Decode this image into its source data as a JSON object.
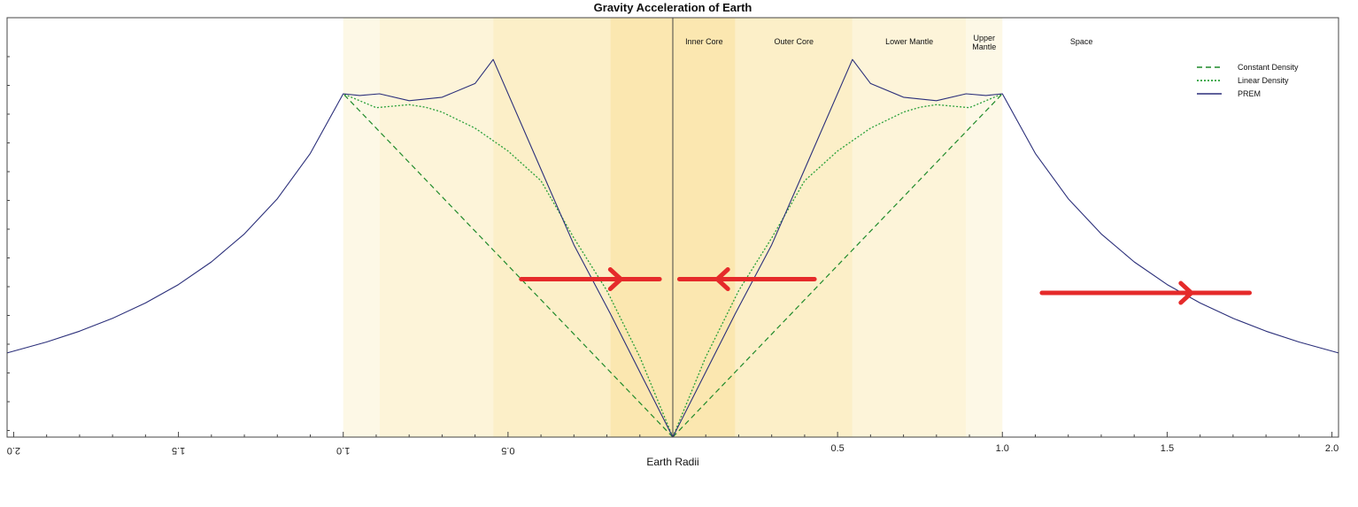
{
  "chart_data": {
    "type": "line",
    "title": "Gravity Acceleration of Earth",
    "xlabel": "Earth Radii",
    "ylabel": "",
    "xlim": [
      0,
      2.02
    ],
    "ylim": [
      0,
      1.2
    ],
    "x_ticks": [
      "0.5",
      "1.0",
      "1.5",
      "2.0"
    ],
    "x_ticks_mirrored": [
      "0.5",
      "1.0",
      "1.5",
      "2.0"
    ],
    "grid": false,
    "legend_position": "top-right",
    "legend": [
      {
        "label": "Constant Density",
        "style": "dashed",
        "color": "#1f8a2a"
      },
      {
        "label": "Linear Density",
        "style": "dotted",
        "color": "#2aa03a"
      },
      {
        "label": "PREM",
        "style": "solid",
        "color": "#2b2f7a"
      }
    ],
    "regions": [
      {
        "label": "Inner Core",
        "from": 0.0,
        "to": 0.19,
        "color": "#fbe7b0"
      },
      {
        "label": "Outer Core",
        "from": 0.19,
        "to": 0.545,
        "color": "#fcefc8"
      },
      {
        "label": "Lower Mantle",
        "from": 0.545,
        "to": 0.89,
        "color": "#fdf4d9"
      },
      {
        "label": "Upper Mantle",
        "from": 0.89,
        "to": 1.0,
        "color": "#fdf8e6"
      },
      {
        "label": "Space",
        "from": 1.0,
        "to": 2.02,
        "color": "#ffffff"
      }
    ],
    "series": [
      {
        "name": "Constant Density",
        "x": [
          0,
          1.0
        ],
        "y": [
          0,
          1.0
        ]
      },
      {
        "name": "Linear Density",
        "x": [
          0,
          0.1,
          0.2,
          0.3,
          0.4,
          0.5,
          0.6,
          0.7,
          0.75,
          0.8,
          0.9,
          1.0
        ],
        "y": [
          0,
          0.2333,
          0.4267,
          0.58,
          0.7467,
          0.8333,
          0.9,
          0.9467,
          0.9609,
          0.9682,
          0.9595,
          1.0
        ]
      },
      {
        "name": "PREM",
        "x": [
          0,
          0.19,
          0.3,
          0.4,
          0.545,
          0.6,
          0.7,
          0.8,
          0.89,
          0.95,
          1.0,
          1.1,
          1.2,
          1.3,
          1.4,
          1.5,
          1.6,
          1.7,
          1.8,
          1.9,
          2.02
        ],
        "y": [
          0,
          0.36,
          0.56,
          0.78,
          1.1,
          1.03,
          0.99,
          0.98,
          1.0,
          0.995,
          1.0,
          0.8264,
          0.6944,
          0.5917,
          0.5102,
          0.4444,
          0.3906,
          0.346,
          0.3086,
          0.277,
          0.245
        ]
      }
    ],
    "annotations": [
      {
        "type": "arrow",
        "color": "#e52a2a",
        "direction": "right",
        "side": "mirrored",
        "from": 0.46,
        "to": 0.04,
        "y": 0.46
      },
      {
        "type": "arrow",
        "color": "#e52a2a",
        "direction": "left",
        "side": "right",
        "from": 0.02,
        "to": 0.43,
        "y": 0.46
      },
      {
        "type": "arrow",
        "color": "#e52a2a",
        "direction": "right",
        "side": "right",
        "from": 1.12,
        "to": 1.75,
        "y": 0.42
      }
    ]
  }
}
